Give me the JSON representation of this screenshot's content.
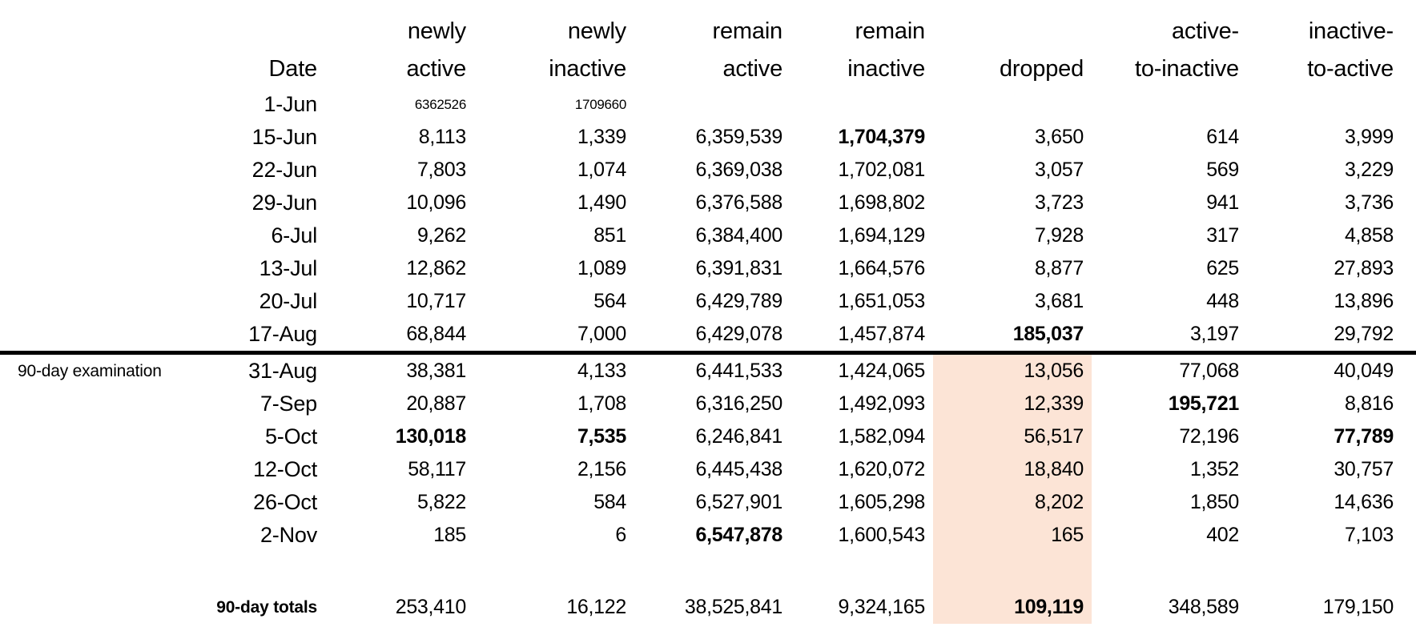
{
  "table": {
    "highlight_color": "#fce4d6",
    "divider_color": "#000000",
    "columns": [
      {
        "id": "label",
        "header1": "",
        "header2": ""
      },
      {
        "id": "date",
        "header1": "",
        "header2": "Date"
      },
      {
        "id": "newly_active",
        "header1": "newly",
        "header2": "active"
      },
      {
        "id": "newly_inactive",
        "header1": "newly",
        "header2": "inactive"
      },
      {
        "id": "remain_active",
        "header1": "remain",
        "header2": "active"
      },
      {
        "id": "remain_inactive",
        "header1": "remain",
        "header2": "inactive"
      },
      {
        "id": "dropped",
        "header1": "",
        "header2": "dropped"
      },
      {
        "id": "active_to_inactive",
        "header1": "active-",
        "header2": "to-inactive"
      },
      {
        "id": "inactive_to_active",
        "header1": "inactive-",
        "header2": "to-active"
      }
    ],
    "rows": [
      {
        "cells": {
          "date": "1-Jun",
          "newly_active": "6362526",
          "newly_inactive": "1709660"
        },
        "small_font": true
      },
      {
        "cells": {
          "date": "15-Jun",
          "newly_active": "8,113",
          "newly_inactive": "1,339",
          "remain_active": "6,359,539",
          "remain_inactive": "1,704,379",
          "dropped": "3,650",
          "active_to_inactive": "614",
          "inactive_to_active": "3,999"
        },
        "bold_cells": [
          "remain_inactive"
        ]
      },
      {
        "cells": {
          "date": "22-Jun",
          "newly_active": "7,803",
          "newly_inactive": "1,074",
          "remain_active": "6,369,038",
          "remain_inactive": "1,702,081",
          "dropped": "3,057",
          "active_to_inactive": "569",
          "inactive_to_active": "3,229"
        }
      },
      {
        "cells": {
          "date": "29-Jun",
          "newly_active": "10,096",
          "newly_inactive": "1,490",
          "remain_active": "6,376,588",
          "remain_inactive": "1,698,802",
          "dropped": "3,723",
          "active_to_inactive": "941",
          "inactive_to_active": "3,736"
        }
      },
      {
        "cells": {
          "date": "6-Jul",
          "newly_active": "9,262",
          "newly_inactive": "851",
          "remain_active": "6,384,400",
          "remain_inactive": "1,694,129",
          "dropped": "7,928",
          "active_to_inactive": "317",
          "inactive_to_active": "4,858"
        }
      },
      {
        "cells": {
          "date": "13-Jul",
          "newly_active": "12,862",
          "newly_inactive": "1,089",
          "remain_active": "6,391,831",
          "remain_inactive": "1,664,576",
          "dropped": "8,877",
          "active_to_inactive": "625",
          "inactive_to_active": "27,893"
        }
      },
      {
        "cells": {
          "date": "20-Jul",
          "newly_active": "10,717",
          "newly_inactive": "564",
          "remain_active": "6,429,789",
          "remain_inactive": "1,651,053",
          "dropped": "3,681",
          "active_to_inactive": "448",
          "inactive_to_active": "13,896"
        }
      },
      {
        "cells": {
          "date": "17-Aug",
          "newly_active": "68,844",
          "newly_inactive": "7,000",
          "remain_active": "6,429,078",
          "remain_inactive": "1,457,874",
          "dropped": "185,037",
          "active_to_inactive": "3,197",
          "inactive_to_active": "29,792"
        },
        "bold_cells": [
          "dropped"
        ],
        "divider_below": true
      },
      {
        "cells": {
          "label": "90-day examination",
          "date": "31-Aug",
          "newly_active": "38,381",
          "newly_inactive": "4,133",
          "remain_active": "6,441,533",
          "remain_inactive": "1,424,065",
          "dropped": "13,056",
          "active_to_inactive": "77,068",
          "inactive_to_active": "40,049"
        },
        "highlight_dropped": true
      },
      {
        "cells": {
          "date": "7-Sep",
          "newly_active": "20,887",
          "newly_inactive": "1,708",
          "remain_active": "6,316,250",
          "remain_inactive": "1,492,093",
          "dropped": "12,339",
          "active_to_inactive": "195,721",
          "inactive_to_active": "8,816"
        },
        "bold_cells": [
          "active_to_inactive"
        ],
        "highlight_dropped": true
      },
      {
        "cells": {
          "date": "5-Oct",
          "newly_active": "130,018",
          "newly_inactive": "7,535",
          "remain_active": "6,246,841",
          "remain_inactive": "1,582,094",
          "dropped": "56,517",
          "active_to_inactive": "72,196",
          "inactive_to_active": "77,789"
        },
        "bold_cells": [
          "newly_active",
          "newly_inactive",
          "inactive_to_active"
        ],
        "highlight_dropped": true
      },
      {
        "cells": {
          "date": "12-Oct",
          "newly_active": "58,117",
          "newly_inactive": "2,156",
          "remain_active": "6,445,438",
          "remain_inactive": "1,620,072",
          "dropped": "18,840",
          "active_to_inactive": "1,352",
          "inactive_to_active": "30,757"
        },
        "highlight_dropped": true
      },
      {
        "cells": {
          "date": "26-Oct",
          "newly_active": "5,822",
          "newly_inactive": "584",
          "remain_active": "6,527,901",
          "remain_inactive": "1,605,298",
          "dropped": "8,202",
          "active_to_inactive": "1,850",
          "inactive_to_active": "14,636"
        },
        "highlight_dropped": true
      },
      {
        "cells": {
          "date": "2-Nov",
          "newly_active": "185",
          "newly_inactive": "6",
          "remain_active": "6,547,878",
          "remain_inactive": "1,600,543",
          "dropped": "165",
          "active_to_inactive": "402",
          "inactive_to_active": "7,103"
        },
        "bold_cells": [
          "remain_active"
        ],
        "highlight_dropped": true
      },
      {
        "spacer": true,
        "highlight_dropped": true
      },
      {
        "cells": {
          "date": "90-day totals",
          "newly_active": "253,410",
          "newly_inactive": "16,122",
          "remain_active": "38,525,841",
          "remain_inactive": "9,324,165",
          "dropped": "109,119",
          "active_to_inactive": "348,589",
          "inactive_to_active": "179,150"
        },
        "bold_cells": [
          "date",
          "dropped"
        ],
        "totals_row": true,
        "highlight_dropped": true
      }
    ]
  },
  "chart_data": {
    "type": "table",
    "title": "",
    "columns": [
      "Date",
      "newly active",
      "newly inactive",
      "remain active",
      "remain inactive",
      "dropped",
      "active-to-inactive",
      "inactive-to-active"
    ],
    "annotations": [
      "90-day examination",
      "90-day totals"
    ],
    "rows": [
      [
        "1-Jun",
        6362526,
        1709660,
        null,
        null,
        null,
        null,
        null
      ],
      [
        "15-Jun",
        8113,
        1339,
        6359539,
        1704379,
        3650,
        614,
        3999
      ],
      [
        "22-Jun",
        7803,
        1074,
        6369038,
        1702081,
        3057,
        569,
        3229
      ],
      [
        "29-Jun",
        10096,
        1490,
        6376588,
        1698802,
        3723,
        941,
        3736
      ],
      [
        "6-Jul",
        9262,
        851,
        6384400,
        1694129,
        7928,
        317,
        4858
      ],
      [
        "13-Jul",
        12862,
        1089,
        6391831,
        1664576,
        8877,
        625,
        27893
      ],
      [
        "20-Jul",
        10717,
        564,
        6429789,
        1651053,
        3681,
        448,
        13896
      ],
      [
        "17-Aug",
        68844,
        7000,
        6429078,
        1457874,
        185037,
        3197,
        29792
      ],
      [
        "31-Aug",
        38381,
        4133,
        6441533,
        1424065,
        13056,
        77068,
        40049
      ],
      [
        "7-Sep",
        20887,
        1708,
        6316250,
        1492093,
        12339,
        195721,
        8816
      ],
      [
        "5-Oct",
        130018,
        7535,
        6246841,
        1582094,
        56517,
        72196,
        77789
      ],
      [
        "12-Oct",
        58117,
        2156,
        6445438,
        1620072,
        18840,
        1352,
        30757
      ],
      [
        "26-Oct",
        5822,
        584,
        6527901,
        1605298,
        8202,
        1850,
        14636
      ],
      [
        "2-Nov",
        185,
        6,
        6547878,
        1600543,
        165,
        402,
        7103
      ],
      [
        "90-day totals",
        253410,
        16122,
        38525841,
        9324165,
        109119,
        348589,
        179150
      ]
    ]
  }
}
